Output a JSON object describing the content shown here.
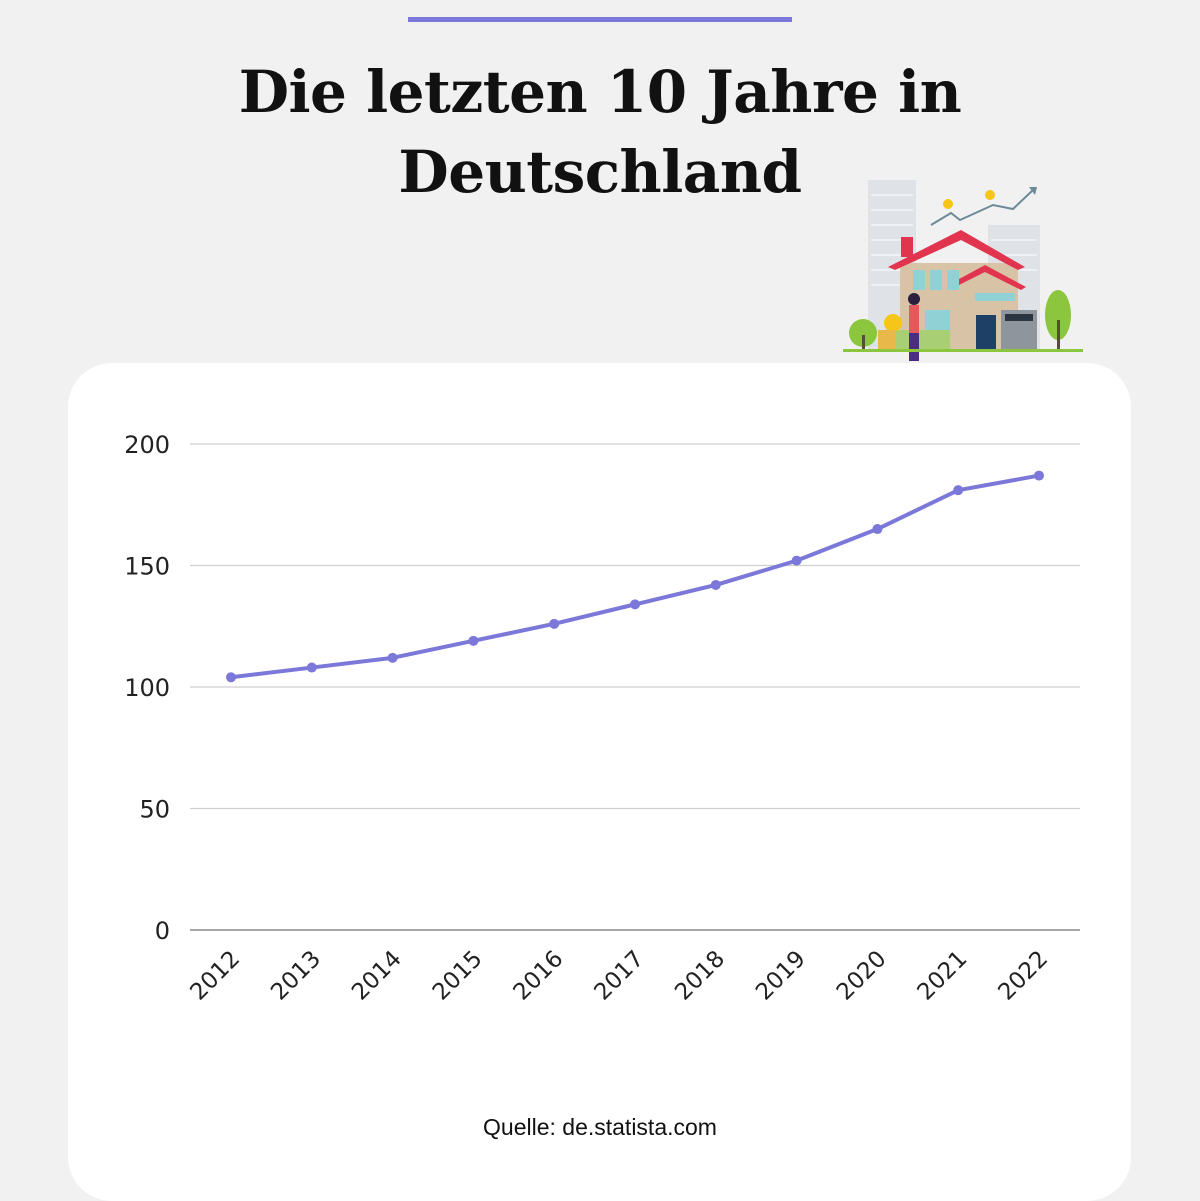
{
  "header": {
    "title_line1": "Die letzten 10 Jahre in",
    "title_line2": "Deutschland"
  },
  "accent_color": "#7b78d9",
  "illustration": "house-with-rising-price-chart",
  "chart_data": {
    "type": "line",
    "categories": [
      "2012",
      "2013",
      "2014",
      "2015",
      "2016",
      "2017",
      "2018",
      "2019",
      "2020",
      "2021",
      "2022"
    ],
    "values": [
      104,
      108,
      112,
      119,
      126,
      134,
      142,
      152,
      165,
      181,
      187
    ],
    "ylim": [
      0,
      200
    ],
    "yticks": [
      0,
      50,
      100,
      150,
      200
    ],
    "grid": true,
    "line_color": "#7b78d9",
    "title": "",
    "xlabel": "",
    "ylabel": ""
  },
  "footer": {
    "source": "Quelle: de.statista.com"
  }
}
